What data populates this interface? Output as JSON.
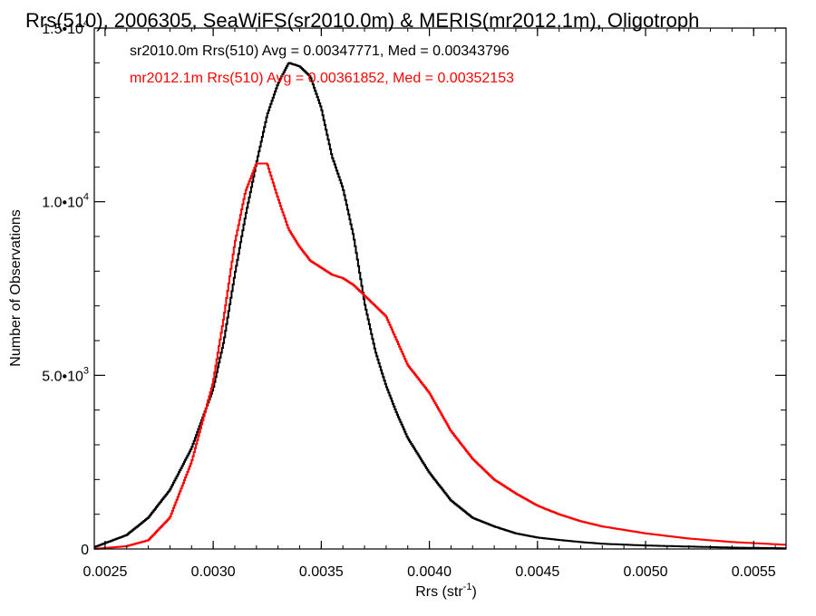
{
  "chart_data": {
    "type": "line",
    "title": "Rrs(510), 2006305, SeaWiFS(sr2010.0m) & MERIS(mr2012.1m), Oligotroph",
    "xlabel_main": "Rrs (str",
    "xlabel_sup": "-1",
    "xlabel_close": ")",
    "ylabel": "Number of Observations",
    "xlim": [
      0.00245,
      0.00565
    ],
    "ylim": [
      0,
      15000
    ],
    "x_ticks": [
      {
        "value": 0.0025,
        "label": "0.0025"
      },
      {
        "value": 0.003,
        "label": "0.0030"
      },
      {
        "value": 0.0035,
        "label": "0.0035"
      },
      {
        "value": 0.004,
        "label": "0.0040"
      },
      {
        "value": 0.0045,
        "label": "0.0045"
      },
      {
        "value": 0.005,
        "label": "0.0050"
      },
      {
        "value": 0.0055,
        "label": "0.0055"
      }
    ],
    "y_ticks": [
      {
        "value": 0,
        "base": "0",
        "exp": ""
      },
      {
        "value": 5000,
        "base": "5.0•10",
        "exp": "3"
      },
      {
        "value": 10000,
        "base": "1.0•10",
        "exp": "4"
      },
      {
        "value": 15000,
        "base": "1.5•10",
        "exp": "4"
      }
    ],
    "annotations": [
      {
        "text": "sr2010.0m Rrs(510) Avg = 0.00347771, Med = 0.00343796",
        "color": "#000000"
      },
      {
        "text": "mr2012.1m Rrs(510) Avg = 0.00361852, Med = 0.00352153",
        "color": "#ff0000"
      }
    ],
    "series": [
      {
        "name": "sr2010.0m",
        "color": "#000000",
        "x": [
          0.00245,
          0.0026,
          0.0027,
          0.0028,
          0.0029,
          0.003,
          0.00305,
          0.0031,
          0.00315,
          0.0032,
          0.00325,
          0.0033,
          0.00335,
          0.0034,
          0.00345,
          0.0035,
          0.00355,
          0.0036,
          0.00365,
          0.0037,
          0.00375,
          0.0038,
          0.00385,
          0.0039,
          0.004,
          0.0041,
          0.0042,
          0.0043,
          0.0044,
          0.0045,
          0.0046,
          0.0047,
          0.0048,
          0.005,
          0.0052,
          0.0054,
          0.00565
        ],
        "y": [
          50,
          400,
          900,
          1700,
          2900,
          4600,
          6000,
          7900,
          9600,
          11100,
          12500,
          13400,
          14000,
          13900,
          13600,
          12700,
          11300,
          10400,
          9000,
          7100,
          5700,
          4700,
          3900,
          3200,
          2200,
          1400,
          900,
          650,
          450,
          330,
          260,
          200,
          150,
          100,
          70,
          40,
          20
        ]
      },
      {
        "name": "mr2012.1m",
        "color": "#ff0000",
        "x": [
          0.00245,
          0.0026,
          0.0027,
          0.0028,
          0.0029,
          0.003,
          0.00305,
          0.0031,
          0.00315,
          0.0032,
          0.00325,
          0.0033,
          0.00335,
          0.0034,
          0.00345,
          0.0035,
          0.00355,
          0.0036,
          0.00365,
          0.0037,
          0.00375,
          0.0038,
          0.00385,
          0.0039,
          0.004,
          0.0041,
          0.0042,
          0.0043,
          0.0044,
          0.0045,
          0.0046,
          0.0047,
          0.0048,
          0.005,
          0.0052,
          0.0054,
          0.00565
        ],
        "y": [
          0,
          80,
          250,
          900,
          2500,
          4800,
          6700,
          8800,
          10300,
          11100,
          11100,
          10100,
          9200,
          8700,
          8300,
          8100,
          7900,
          7800,
          7600,
          7300,
          7000,
          6700,
          6000,
          5300,
          4500,
          3400,
          2600,
          2000,
          1600,
          1250,
          1000,
          800,
          650,
          450,
          300,
          200,
          120
        ]
      }
    ],
    "grid": false,
    "legend": "none"
  }
}
